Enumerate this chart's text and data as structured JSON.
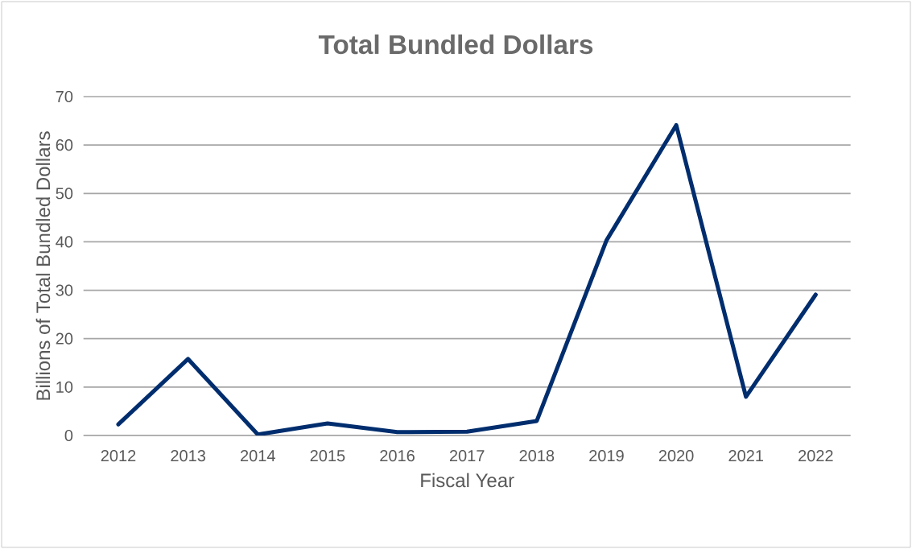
{
  "chart_data": {
    "type": "line",
    "title": "Total Bundled Dollars",
    "xlabel": "Fiscal Year",
    "ylabel": "Billions of Total Bundled Dollars",
    "categories": [
      "2012",
      "2013",
      "2014",
      "2015",
      "2016",
      "2017",
      "2018",
      "2019",
      "2020",
      "2021",
      "2022"
    ],
    "series": [
      {
        "color": "#002d6e",
        "values": [
          2.3,
          15.8,
          0.2,
          2.5,
          0.7,
          0.8,
          3.0,
          40.3,
          64.1,
          8.0,
          29.1
        ]
      }
    ],
    "ylim": [
      0,
      70
    ],
    "yticks": [
      0,
      10,
      20,
      30,
      40,
      50,
      60,
      70
    ],
    "grid": "y",
    "legend": false,
    "marker": "none",
    "line_style": "solid"
  }
}
